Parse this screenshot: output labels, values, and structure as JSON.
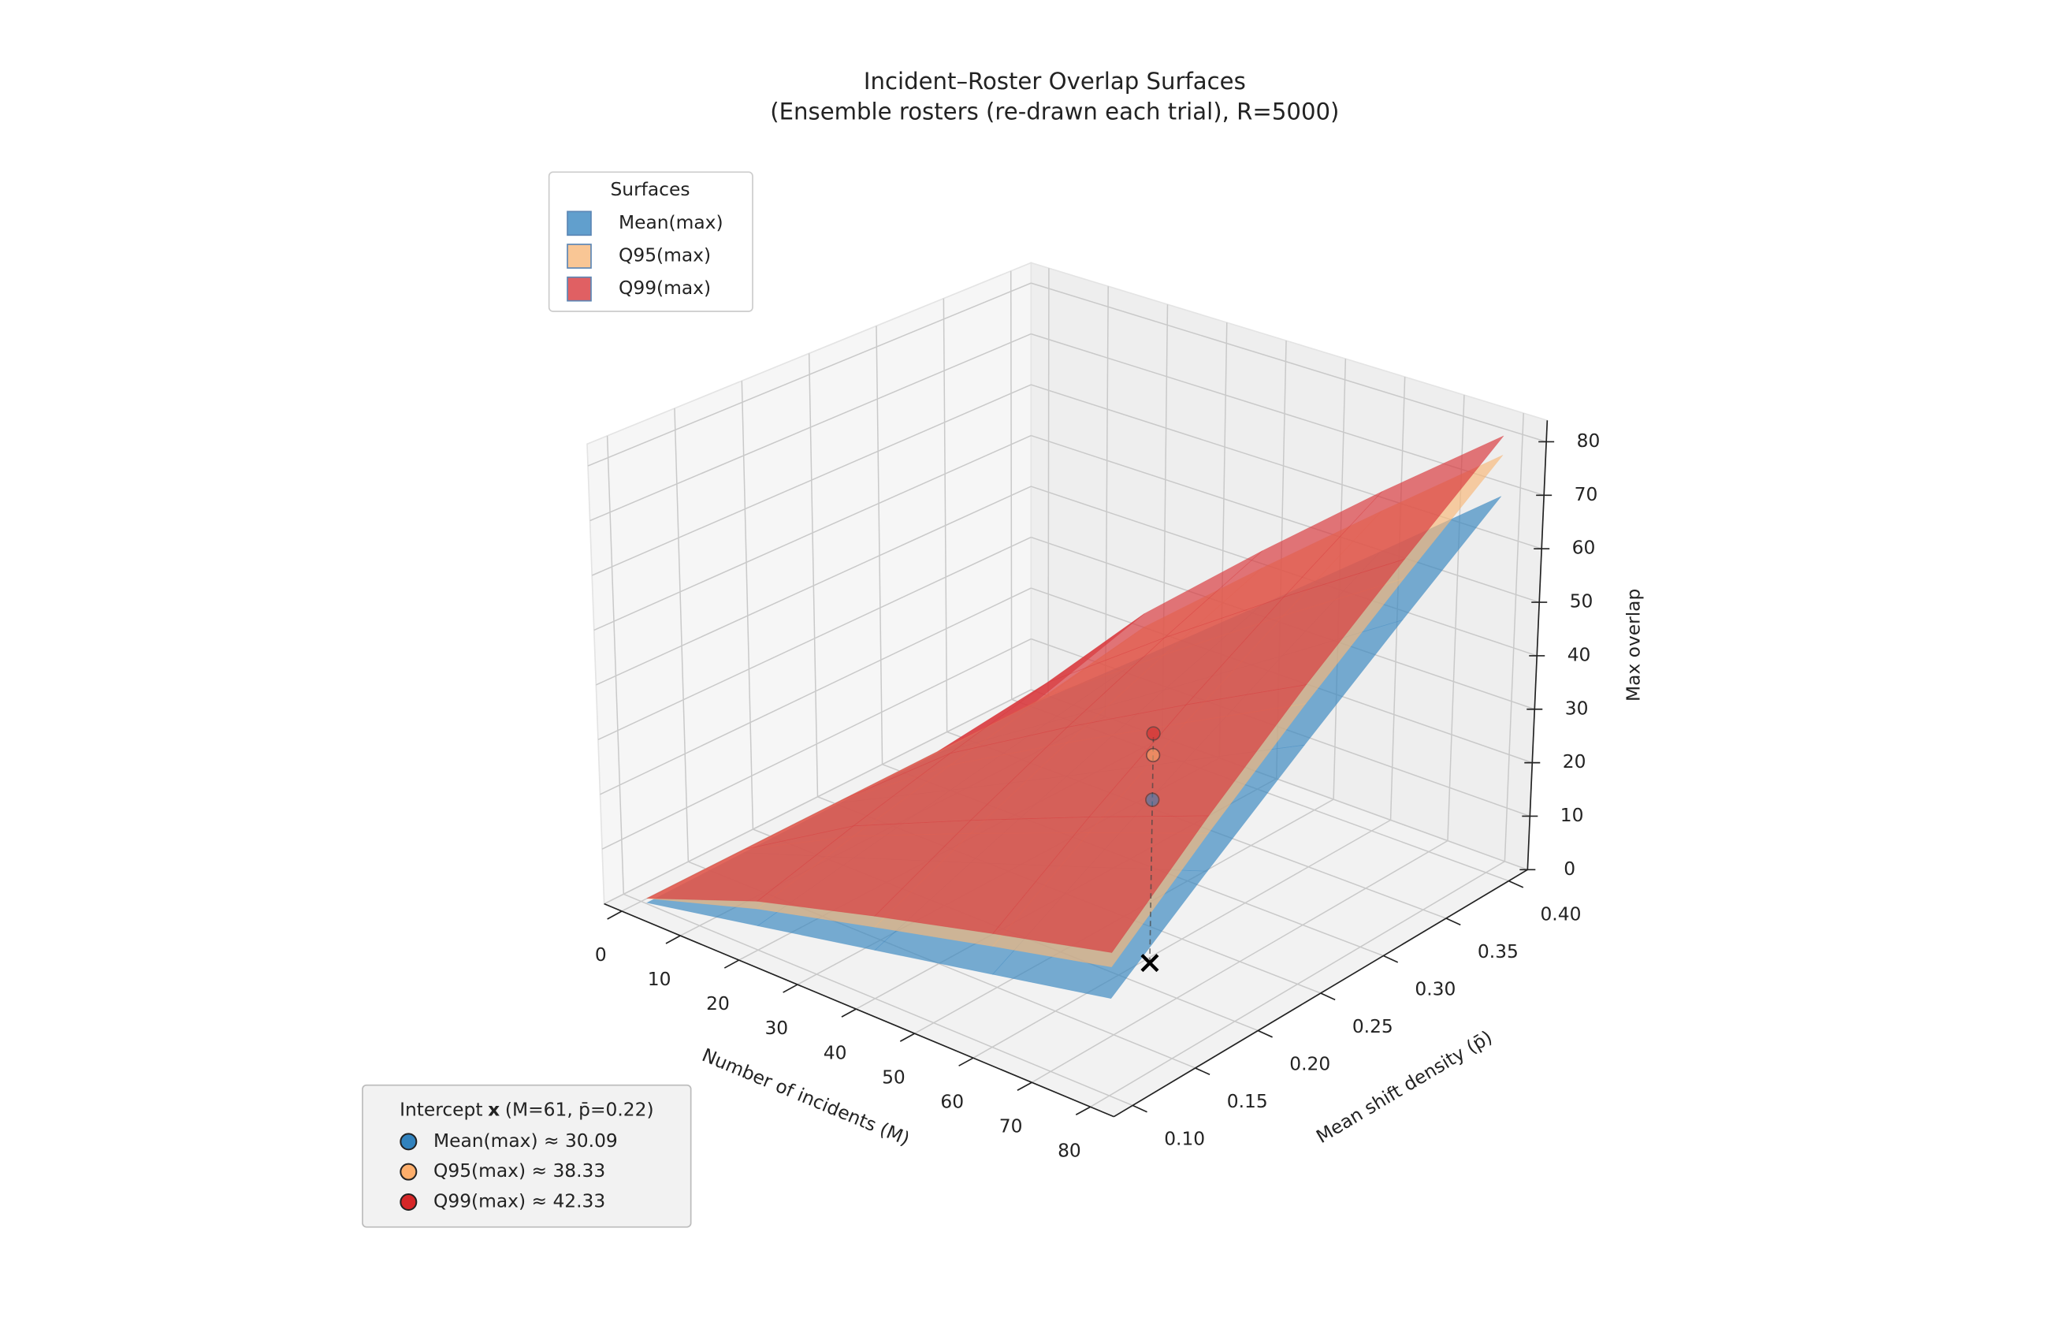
{
  "chart_data": {
    "type": "surface3d",
    "title": "Incident–Roster Overlap Surfaces",
    "subtitle": "(Ensemble rosters (re-drawn each trial), R=5000)",
    "xlabel": "Number of incidents (M)",
    "ylabel": "Mean shift density (p̄)",
    "zlabel": "Max overlap",
    "x": [
      1,
      20,
      40,
      60,
      80
    ],
    "y": [
      0.1,
      0.175,
      0.25,
      0.325,
      0.4
    ],
    "xlim": [
      -3,
      84
    ],
    "ylim": [
      0.085,
      0.415
    ],
    "zlim": [
      0,
      84
    ],
    "xticks": [
      0,
      10,
      20,
      30,
      40,
      50,
      60,
      70,
      80
    ],
    "yticks": [
      {
        "value": 0.1,
        "label": "0.10"
      },
      0.15,
      {
        "value": 0.2,
        "label": "0.20"
      },
      0.25,
      {
        "value": 0.3,
        "label": "0.30"
      },
      0.35,
      {
        "value": 0.4,
        "label": "0.40"
      }
    ],
    "zticks": [
      0,
      10,
      20,
      30,
      40,
      50,
      60,
      70,
      80
    ],
    "grid": true,
    "alpha": 0.68,
    "legend_title": "Surfaces",
    "legend_loc": "upper left",
    "series": [
      {
        "name": "Mean(max)",
        "color": "#3a87c0",
        "z": [
          [
            0.2,
            4.4,
            8.8,
            13.2,
            17.6
          ],
          [
            0.4,
            7.7,
            15.4,
            23.1,
            30.8
          ],
          [
            0.6,
            11.0,
            22.0,
            33.0,
            44.0
          ],
          [
            0.7,
            14.3,
            28.6,
            42.9,
            57.2
          ],
          [
            0.9,
            17.6,
            35.2,
            52.8,
            70.4
          ]
        ]
      },
      {
        "name": "Q95(max)",
        "color": "#f7b87a",
        "z": [
          [
            1,
            7.5,
            13.0,
            18.3,
            23.3
          ],
          [
            1,
            11.7,
            20.8,
            29.4,
            37.7
          ],
          [
            1,
            15.7,
            28.2,
            40.1,
            51.6
          ],
          [
            1,
            19.5,
            35.3,
            50.4,
            64.9
          ],
          [
            1,
            23.3,
            42.3,
            60.5,
            78.1
          ]
        ]
      },
      {
        "name": "Q99(max)",
        "color": "#d8383c",
        "z": [
          [
            1,
            8.9,
            15.0,
            20.6,
            25.9
          ],
          [
            1,
            13.6,
            23.2,
            32.3,
            40.9
          ],
          [
            1,
            17.9,
            31.1,
            43.4,
            55.1
          ],
          [
            1,
            22.0,
            38.5,
            53.9,
            68.5
          ],
          [
            1,
            25.9,
            45.6,
            64.2,
            81.7
          ]
        ]
      }
    ],
    "intercept": {
      "title": "Intercept",
      "symbol": "x",
      "params": "(M=61, p̄=0.22)",
      "M": 61,
      "p": 0.22,
      "loc": "lower left",
      "entries": [
        {
          "label": "Mean(max) ≈ 30.09",
          "value": 30.09,
          "color": "#3182bd"
        },
        {
          "label": "Q95(max) ≈ 38.33",
          "value": 38.33,
          "color": "#fdae6b"
        },
        {
          "label": "Q99(max) ≈ 42.33",
          "value": 42.33,
          "color": "#d62728"
        }
      ]
    }
  }
}
